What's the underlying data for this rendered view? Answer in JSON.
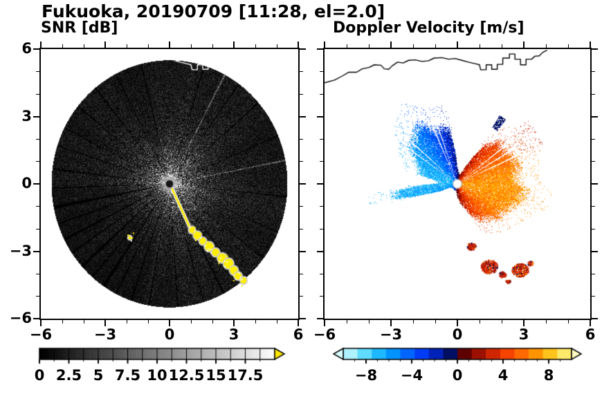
{
  "title": "Fukuoka, 20190709 [11:28, el=2.0]",
  "panels": {
    "snr": {
      "label": "SNR [dB]",
      "colorbar": {
        "tick_labels": [
          "0",
          "2.5",
          "5",
          "7.5",
          "10",
          "12.5",
          "15",
          "17.5"
        ],
        "tick_values": [
          0,
          2.5,
          5,
          7.5,
          10,
          12.5,
          15,
          17.5
        ],
        "min": 0,
        "max": 20,
        "over_color": "#ffe800"
      }
    },
    "doppler": {
      "label": "Doppler Velocity [m/s]",
      "colorbar": {
        "tick_labels": [
          "−8",
          "−4",
          "0",
          "4",
          "8"
        ],
        "tick_values": [
          -8,
          -4,
          0,
          4,
          8
        ],
        "min": -10,
        "max": 10
      }
    }
  },
  "axes": {
    "x_tick_labels": [
      "−6",
      "−3",
      "0",
      "3",
      "6"
    ],
    "x_tick_values": [
      -6,
      -3,
      0,
      3,
      6
    ],
    "y_tick_labels": [
      "6",
      "3",
      "0",
      "−3",
      "−6"
    ],
    "y_tick_values": [
      6,
      3,
      0,
      -3,
      -6
    ],
    "range_km": [
      -6,
      6
    ]
  },
  "map_overlay": {
    "coastline_km": [
      [
        -6.0,
        4.5
      ],
      [
        -5.55,
        4.62
      ],
      [
        -5.2,
        4.8
      ],
      [
        -4.9,
        4.97
      ],
      [
        -4.55,
        4.97
      ],
      [
        -4.3,
        5.12
      ],
      [
        -4.0,
        5.18
      ],
      [
        -3.75,
        5.3
      ],
      [
        -3.45,
        5.28
      ],
      [
        -3.3,
        5.12
      ],
      [
        -3.1,
        5.1
      ],
      [
        -2.95,
        5.25
      ],
      [
        -2.7,
        5.42
      ],
      [
        -2.45,
        5.38
      ],
      [
        -2.2,
        5.5
      ],
      [
        -1.9,
        5.52
      ],
      [
        -1.6,
        5.45
      ],
      [
        -1.3,
        5.48
      ],
      [
        -1.05,
        5.6
      ],
      [
        -0.7,
        5.62
      ],
      [
        -0.4,
        5.55
      ],
      [
        -0.1,
        5.58
      ],
      [
        0.2,
        5.5
      ],
      [
        0.5,
        5.42
      ],
      [
        0.8,
        5.35
      ],
      [
        1.0,
        5.3
      ],
      [
        1.05,
        5.08
      ],
      [
        1.3,
        5.08
      ],
      [
        1.3,
        5.3
      ],
      [
        1.55,
        5.3
      ],
      [
        1.55,
        5.1
      ],
      [
        1.8,
        5.1
      ],
      [
        1.8,
        5.32
      ],
      [
        2.05,
        5.32
      ],
      [
        2.05,
        5.6
      ],
      [
        2.35,
        5.6
      ],
      [
        2.35,
        5.78
      ],
      [
        2.6,
        5.78
      ],
      [
        2.6,
        5.55
      ],
      [
        2.85,
        5.55
      ],
      [
        2.85,
        5.3
      ],
      [
        3.1,
        5.3
      ],
      [
        3.1,
        5.55
      ],
      [
        3.35,
        5.55
      ],
      [
        3.5,
        5.68
      ],
      [
        3.7,
        5.7
      ],
      [
        3.85,
        5.85
      ],
      [
        4.05,
        5.95
      ]
    ]
  },
  "chart_data": [
    {
      "type": "heatmap",
      "title": "SNR [dB]",
      "xlim": [
        -6,
        6
      ],
      "ylim": [
        -6,
        6
      ],
      "units_xy": "km",
      "x_ticks": [
        -6,
        -3,
        0,
        3,
        6
      ],
      "y_ticks": [
        -6,
        -3,
        0,
        3,
        6
      ],
      "colorbar": {
        "min": 0,
        "max": 20,
        "ticks": [
          0,
          2.5,
          5,
          7.5,
          10,
          12.5,
          15,
          17.5
        ],
        "colormap": "grayscale",
        "over_color": "#ffe800"
      },
      "description": "PPI radar scan: dark disk of radius 5.5 km centered on the radar at (0,0). Speckled SNR field, brightest (15-18 dB) within ~1.5 km of the radar, fading to 0-5 dB speckle at range. Thin dark radial spokes mark blocked beams; saturated yellow (>17.5 dB) ground-clutter ray from the radar toward azimuth ~155 deg and a chain of yellow clutter blobs from (1,-2) to (3.5,-4.3). White coastline crosses the top of the scan.",
      "render": {
        "scan_radius_km": 5.5,
        "near_field_snr_db": 17,
        "far_field_snr_db": 3,
        "dark_rays": [
          [
            17,
            0.35
          ],
          [
            36,
            0.3
          ],
          [
            49,
            0.35
          ],
          [
            67,
            0.3
          ],
          [
            96,
            0.3
          ],
          [
            113,
            0.25
          ],
          [
            127,
            0.35
          ],
          [
            141,
            0.3
          ],
          [
            152.5,
            0.45
          ],
          [
            163,
            0.3
          ],
          [
            176,
            0.3
          ],
          [
            190,
            0.35
          ],
          [
            199,
            0.5
          ],
          [
            207,
            0.4
          ],
          [
            214,
            0.8
          ],
          [
            221,
            0.4
          ],
          [
            228,
            0.8
          ],
          [
            236,
            0.45
          ],
          [
            243,
            0.6
          ],
          [
            251,
            0.4
          ],
          [
            259,
            0.9
          ],
          [
            268,
            0.4
          ],
          [
            277,
            0.4
          ],
          [
            288,
            0.3
          ],
          [
            297,
            0.35
          ],
          [
            309,
            0.3
          ],
          [
            321,
            0.4
          ],
          [
            333,
            0.3
          ],
          [
            346,
            0.35
          ]
        ],
        "bright_rays": [
          28,
          79
        ],
        "clutter_ray": {
          "from": [
            0.12,
            -0.22
          ],
          "to": [
            0.95,
            -1.95
          ]
        },
        "clutter_blobs": [
          [
            1.05,
            -2.05,
            0.14
          ],
          [
            1.3,
            -2.3,
            0.17
          ],
          [
            1.55,
            -2.55,
            0.15
          ],
          [
            1.85,
            -2.8,
            0.2
          ],
          [
            2.15,
            -3.05,
            0.17
          ],
          [
            2.45,
            -3.3,
            0.2
          ],
          [
            2.75,
            -3.55,
            0.22
          ],
          [
            3.0,
            -3.85,
            0.18
          ],
          [
            3.2,
            -4.1,
            0.16
          ],
          [
            3.45,
            -4.3,
            0.14
          ],
          [
            -1.85,
            -2.4,
            0.07
          ]
        ]
      }
    },
    {
      "type": "heatmap",
      "title": "Doppler Velocity [m/s]",
      "xlim": [
        -6,
        6
      ],
      "ylim": [
        -6,
        6
      ],
      "units_xy": "km",
      "x_ticks": [
        -6,
        -3,
        0,
        3,
        6
      ],
      "y_ticks": [
        -6,
        -3,
        0,
        3,
        6
      ],
      "description": "Doppler velocity dipole around the radar: negative (blue, -2 to -8 m/s, toward radar) lobe over azimuths W through N reaching ~3.3 km, positive (red-orange, +2 to +8 m/s, away) lobe over azimuths NE through SSE reaching ~3.3 km. Thin white blocked-beam rays cut both lobes. Detached red echo blobs near (1.5,-3.7) and (2.9,-3.9). Black coastline across the top; white elsewhere (no echo).",
      "colormap": {
        "min": -10,
        "max": 10,
        "step": 1.25,
        "colors": [
          "#aef2ff",
          "#5fdcff",
          "#1db8ff",
          "#0092ff",
          "#0066ff",
          "#003cf5",
          "#0022b9",
          "#000e64",
          "#5f0000",
          "#9b1000",
          "#cf2600",
          "#f54300",
          "#ff6a00",
          "#ff9400",
          "#ffc41c",
          "#ffe96a"
        ],
        "under": "#d8ffff",
        "over": "#fffdc0"
      },
      "render": {
        "vmax": 7,
        "dipole_axis_deg": 97,
        "noise_ms": 2.6,
        "echo_extent": [
          [
            0,
            1.0
          ],
          [
            8,
            0.6
          ],
          [
            18,
            0.55
          ],
          [
            28,
            1.2
          ],
          [
            36,
            2.2
          ],
          [
            46,
            3.05
          ],
          [
            58,
            3.25
          ],
          [
            70,
            3.0
          ],
          [
            82,
            3.15
          ],
          [
            94,
            3.3
          ],
          [
            106,
            3.25
          ],
          [
            118,
            3.0
          ],
          [
            130,
            2.7
          ],
          [
            140,
            2.3
          ],
          [
            150,
            1.9
          ],
          [
            160,
            1.3
          ],
          [
            170,
            0.9
          ],
          [
            180,
            0.6
          ],
          [
            194,
            0.35
          ],
          [
            214,
            0.3
          ],
          [
            232,
            0.35
          ],
          [
            244,
            0.5
          ],
          [
            252,
            1.6
          ],
          [
            257,
            3.1
          ],
          [
            263,
            3.3
          ],
          [
            267,
            2.2
          ],
          [
            272,
            0.9
          ],
          [
            278,
            1.1
          ],
          [
            284,
            2.0
          ],
          [
            290,
            2.3
          ],
          [
            296,
            2.8
          ],
          [
            304,
            3.15
          ],
          [
            312,
            3.3
          ],
          [
            320,
            3.25
          ],
          [
            328,
            3.3
          ],
          [
            336,
            3.2
          ],
          [
            344,
            3.0
          ],
          [
            352,
            2.8
          ],
          [
            357,
            1.6
          ],
          [
            360,
            1.0
          ]
        ],
        "blocked_rays": [
          [
            52,
            0.6
          ],
          [
            58.5,
            0.6
          ],
          [
            65,
            0.6
          ],
          [
            305.5,
            0.5
          ],
          [
            312,
            0.5
          ],
          [
            336.5,
            0.6
          ],
          [
            341,
            0.5
          ]
        ],
        "outlier_blobs": [
          [
            0.65,
            -2.8,
            0.16
          ],
          [
            1.45,
            -3.7,
            0.3
          ],
          [
            2.05,
            -4.05,
            0.13
          ],
          [
            2.85,
            -3.85,
            0.3
          ],
          [
            3.3,
            -3.55,
            0.1
          ],
          [
            2.3,
            -4.35,
            0.08
          ]
        ],
        "navy_patch": {
          "az": [
            32,
            37.5
          ],
          "r": [
            2.95,
            3.6
          ]
        },
        "speck_ray": {
          "az": [
            48,
            66
          ],
          "rmax": 4.25
        }
      }
    }
  ]
}
